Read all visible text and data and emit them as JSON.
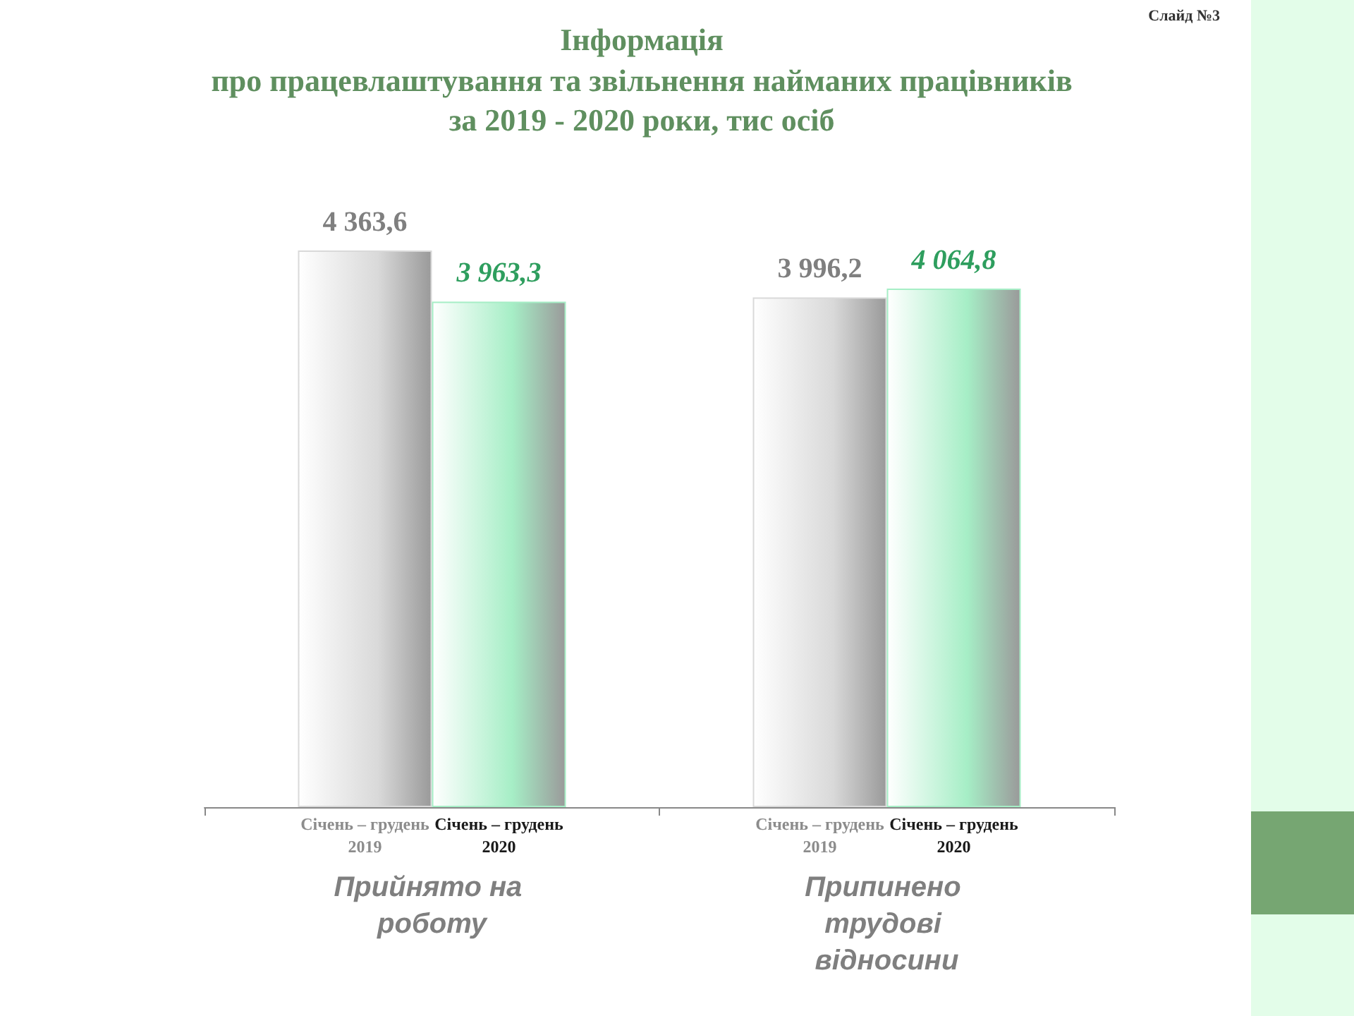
{
  "chart_data": {
    "type": "bar",
    "title": "Інформація",
    "subtitle": "про працевлаштування та звільнення найманих працівників\nза 2019 - 2020 роки, тис осіб",
    "annotations": [
      "Слайд №3"
    ],
    "categories": [
      "Прийнято на роботу",
      "Припинено трудові відносини"
    ],
    "series": [
      {
        "name": "Січень – грудень 2019",
        "color": "#d9d9d9",
        "values": [
          4363.6,
          3996.2
        ],
        "value_labels": [
          "4 363,6",
          "3 996,2"
        ]
      },
      {
        "name": "Січень – грудень 2020",
        "color": "#a6eec6",
        "values": [
          3963.3,
          4064.8
        ],
        "value_labels": [
          "3 963,3",
          "4 064,8"
        ]
      }
    ]
  }
}
